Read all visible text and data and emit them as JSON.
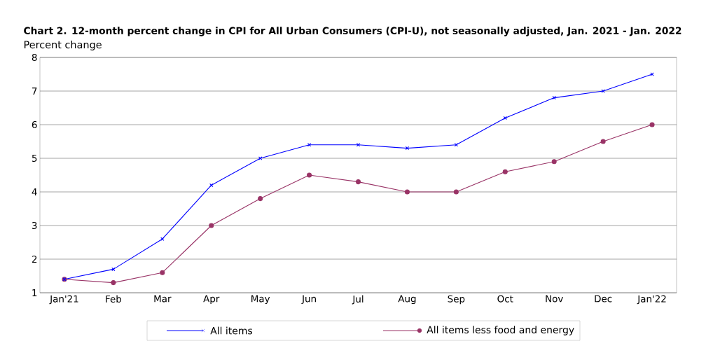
{
  "chart_data": {
    "type": "line",
    "title": "Chart 2. 12-month percent change in CPI for All Urban Consumers (CPI-U), not seasonally adjusted, Jan. 2021 - Jan. 2022",
    "ylabel": "Percent change",
    "categories": [
      "Jan'21",
      "Feb",
      "Mar",
      "Apr",
      "May",
      "Jun",
      "Jul",
      "Aug",
      "Sep",
      "Oct",
      "Nov",
      "Dec",
      "Jan'22"
    ],
    "series": [
      {
        "name": "All items",
        "color": "#0000ff",
        "marker": "cross",
        "values": [
          1.4,
          1.7,
          2.6,
          4.2,
          5.0,
          5.4,
          5.4,
          5.3,
          5.4,
          6.2,
          6.8,
          7.0,
          7.5
        ]
      },
      {
        "name": "All items less food and energy",
        "color": "#993366",
        "marker": "circle",
        "values": [
          1.4,
          1.3,
          1.6,
          3.0,
          3.8,
          4.5,
          4.3,
          4.0,
          4.0,
          4.6,
          4.9,
          5.5,
          6.0
        ]
      }
    ],
    "ylim": [
      1,
      8
    ],
    "yticks": [
      1,
      2,
      3,
      4,
      5,
      6,
      7,
      8
    ],
    "grid": "y",
    "legend": "bottom",
    "line_style": "solid"
  }
}
